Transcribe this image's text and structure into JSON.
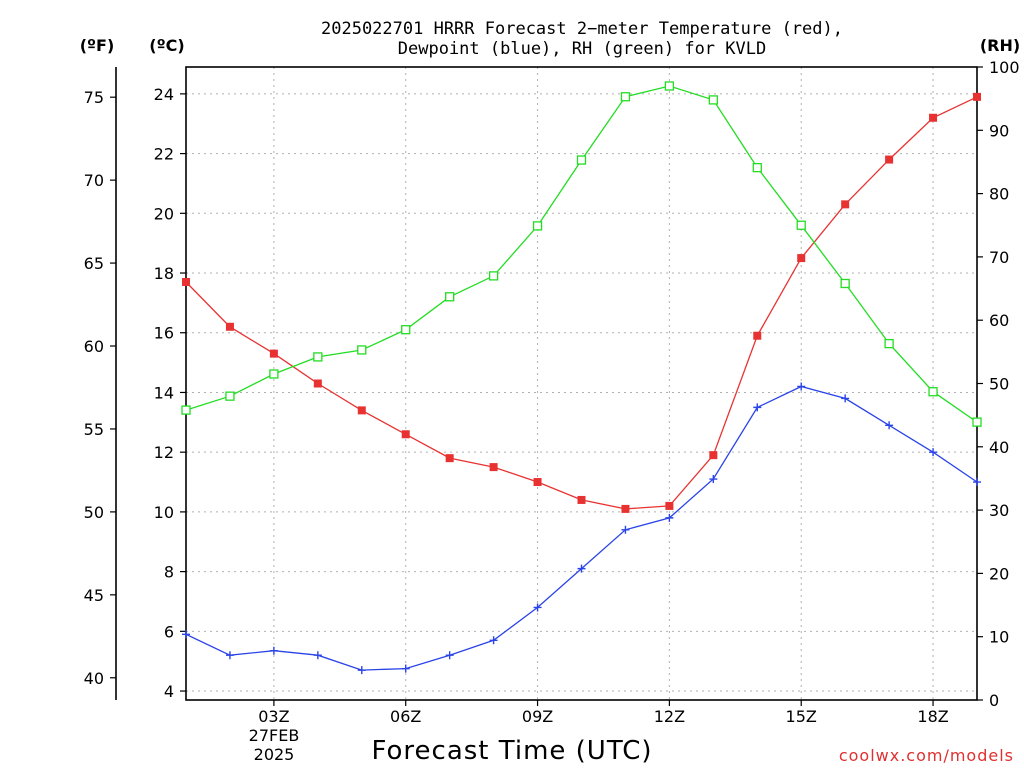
{
  "title_line1": "2025022701 HRRR Forecast 2−meter Temperature (red),",
  "title_line2": "Dewpoint (blue), RH (green) for KVLD",
  "left_outer_unit": "(ºF)",
  "left_inner_unit": "(ºC)",
  "right_unit": "(RH)",
  "x_title": "Forecast Time (UTC)",
  "date_label_line1": "27FEB",
  "date_label_line2": "2025",
  "credit": "coolwx.com/models",
  "colors": {
    "temperature": "#e83232",
    "dewpoint": "#2a44e8",
    "rh": "#22dd22",
    "grid": "#b0b0b0"
  },
  "chart_data": {
    "type": "line",
    "x_hours": [
      1,
      2,
      3,
      4,
      5,
      6,
      7,
      8,
      9,
      10,
      11,
      12,
      13,
      14,
      15,
      16,
      17,
      18,
      19
    ],
    "x_tick_hours": [
      3,
      6,
      9,
      12,
      15,
      18
    ],
    "x_tick_labels": [
      "03Z",
      "06Z",
      "09Z",
      "12Z",
      "15Z",
      "18Z"
    ],
    "xlim": [
      1,
      19
    ],
    "celsius_axis": {
      "ylim": [
        3.7,
        24.9
      ],
      "ticks": [
        4,
        6,
        8,
        10,
        12,
        14,
        16,
        18,
        20,
        22,
        24
      ]
    },
    "fahrenheit_axis": {
      "ticks": [
        40,
        45,
        50,
        55,
        60,
        65,
        70,
        75
      ]
    },
    "rh_axis": {
      "ylim": [
        0,
        100
      ],
      "ticks": [
        0,
        10,
        20,
        30,
        40,
        50,
        60,
        70,
        80,
        90,
        100
      ]
    },
    "grid": true,
    "series": [
      {
        "name": "Temperature",
        "axis": "celsius",
        "marker": "filled-square",
        "values": [
          17.7,
          16.2,
          15.3,
          14.3,
          13.4,
          12.6,
          11.8,
          11.5,
          11.0,
          10.4,
          10.1,
          10.2,
          11.9,
          15.9,
          18.5,
          20.3,
          21.8,
          23.2,
          23.9
        ]
      },
      {
        "name": "Dewpoint",
        "axis": "celsius",
        "marker": "plus",
        "values": [
          5.9,
          5.2,
          5.35,
          5.2,
          4.7,
          4.75,
          5.2,
          5.7,
          6.8,
          8.1,
          9.4,
          9.8,
          11.1,
          13.5,
          14.2,
          13.8,
          12.9,
          12.0,
          11.0
        ]
      },
      {
        "name": "RH",
        "axis": "rh",
        "marker": "open-square",
        "values": [
          45.8,
          48,
          51.5,
          54.2,
          55.3,
          58.5,
          63.7,
          67,
          74.9,
          85.3,
          95.3,
          97,
          94.8,
          84.1,
          75,
          65.8,
          56.3,
          48.7,
          43.9
        ]
      }
    ]
  }
}
